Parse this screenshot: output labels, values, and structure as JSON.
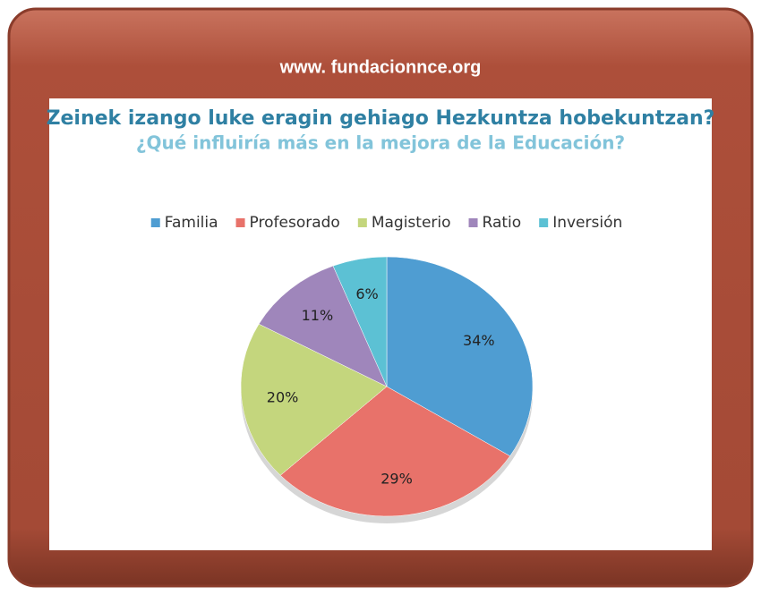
{
  "header": {
    "url": "www. fundacionnce.org"
  },
  "chart_data": {
    "type": "pie",
    "title": "Zeinek izango luke eragin gehiago Hezkuntza hobekuntzan?",
    "subtitle": "¿Qué influiría más en la mejora de la Educación?",
    "categories": [
      "Familia",
      "Profesorado",
      "Magisterio",
      "Ratio",
      "Inversión"
    ],
    "values": [
      34,
      29,
      20,
      11,
      6
    ],
    "value_labels": [
      "34%",
      "29%",
      "20%",
      "11%",
      "6%"
    ],
    "colors": [
      "#4f9dd2",
      "#e8726a",
      "#c4d67d",
      "#9f86bb",
      "#5cc1d4"
    ],
    "legend": "top"
  }
}
